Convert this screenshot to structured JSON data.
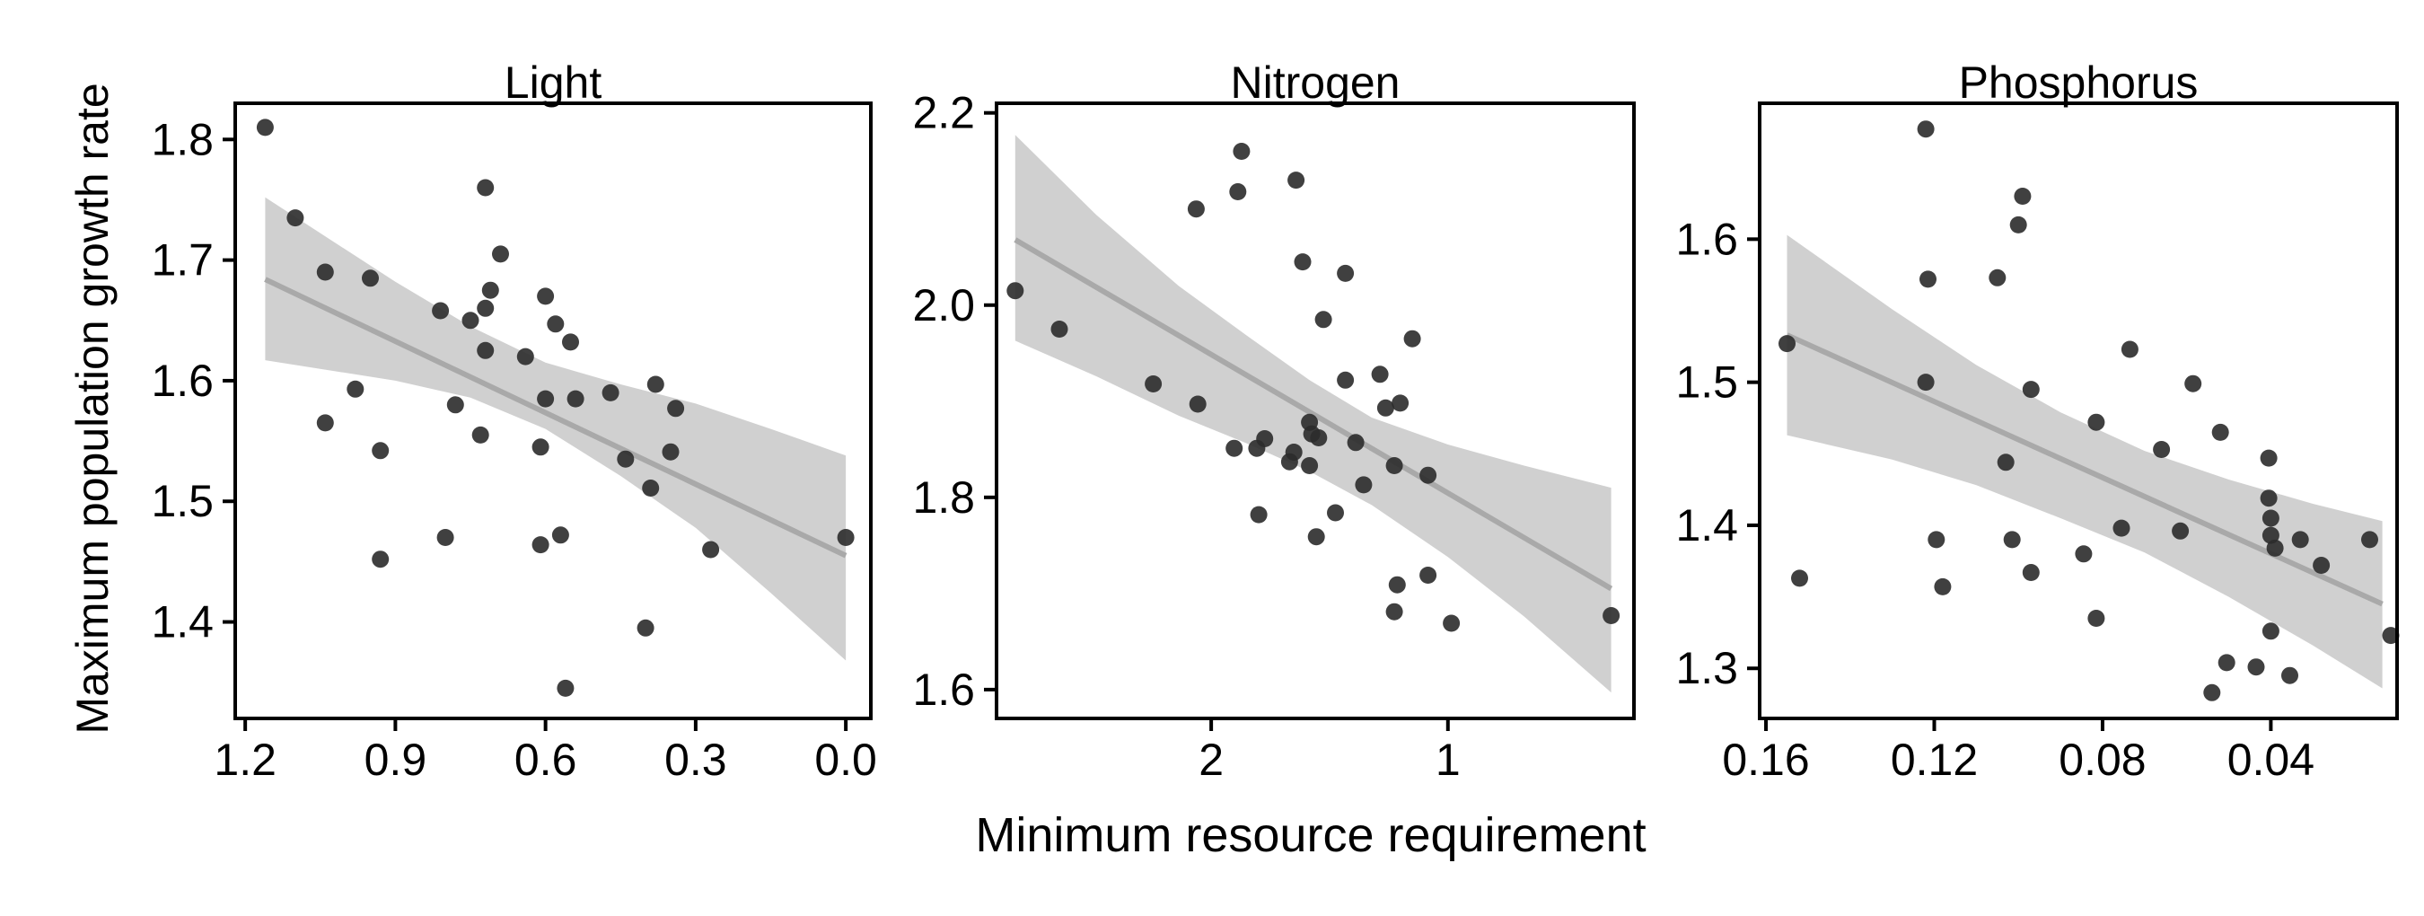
{
  "figure": {
    "ylabel": "Maximum population growth rate",
    "xlabel": "Minimum resource requirement"
  },
  "colors": {
    "point": "#2b2b2b",
    "band": "#d0d0d0",
    "trend": "#a9a9a9",
    "axis": "#000000"
  },
  "chart_data": [
    {
      "type": "scatter",
      "title": "Light",
      "x_reversed": true,
      "xlim": [
        1.22,
        -0.05
      ],
      "ylim": [
        1.32,
        1.83
      ],
      "x_ticks": [
        1.2,
        0.9,
        0.6,
        0.3,
        0.0
      ],
      "x_tick_labels": [
        "1.2",
        "0.9",
        "0.6",
        "0.3",
        "0.0"
      ],
      "y_ticks": [
        1.4,
        1.5,
        1.6,
        1.7,
        1.8
      ],
      "y_tick_labels": [
        "1.4",
        "1.5",
        "1.6",
        "1.7",
        "1.8"
      ],
      "points": [
        [
          1.16,
          1.81
        ],
        [
          1.1,
          1.735
        ],
        [
          1.04,
          1.69
        ],
        [
          0.95,
          1.685
        ],
        [
          1.04,
          1.565
        ],
        [
          0.98,
          1.593
        ],
        [
          0.93,
          1.542
        ],
        [
          0.93,
          1.452
        ],
        [
          0.81,
          1.658
        ],
        [
          0.75,
          1.65
        ],
        [
          0.72,
          1.76
        ],
        [
          0.72,
          1.66
        ],
        [
          0.71,
          1.675
        ],
        [
          0.69,
          1.705
        ],
        [
          0.72,
          1.625
        ],
        [
          0.78,
          1.58
        ],
        [
          0.73,
          1.555
        ],
        [
          0.8,
          1.47
        ],
        [
          0.64,
          1.62
        ],
        [
          0.6,
          1.67
        ],
        [
          0.58,
          1.647
        ],
        [
          0.55,
          1.632
        ],
        [
          0.6,
          1.585
        ],
        [
          0.54,
          1.585
        ],
        [
          0.61,
          1.545
        ],
        [
          0.61,
          1.464
        ],
        [
          0.57,
          1.472
        ],
        [
          0.56,
          1.345
        ],
        [
          0.47,
          1.59
        ],
        [
          0.38,
          1.597
        ],
        [
          0.44,
          1.535
        ],
        [
          0.34,
          1.577
        ],
        [
          0.35,
          1.541
        ],
        [
          0.39,
          1.511
        ],
        [
          0.4,
          1.395
        ],
        [
          0.27,
          1.46
        ],
        [
          0.0,
          1.47
        ]
      ],
      "trend": {
        "x": [
          1.16,
          0.0
        ],
        "y": [
          1.684,
          1.455
        ]
      },
      "band": {
        "x": [
          1.16,
          0.9,
          0.75,
          0.6,
          0.45,
          0.3,
          0.15,
          0.0
        ],
        "lower": [
          1.617,
          1.6,
          1.586,
          1.56,
          1.521,
          1.478,
          1.424,
          1.368
        ],
        "upper": [
          1.752,
          1.682,
          1.645,
          1.615,
          1.597,
          1.581,
          1.56,
          1.538
        ]
      }
    },
    {
      "type": "scatter",
      "title": "Nitrogen",
      "x_scale": "log",
      "x_reversed": true,
      "xlim": [
        3.75,
        0.58
      ],
      "ylim": [
        1.57,
        2.21
      ],
      "x_ticks": [
        2,
        1
      ],
      "x_tick_labels": [
        "2",
        "1"
      ],
      "y_ticks": [
        1.6,
        1.8,
        2.0,
        2.2
      ],
      "y_tick_labels": [
        "1.6",
        "1.8",
        "2.0",
        "2.2"
      ],
      "points": [
        [
          3.55,
          2.015
        ],
        [
          3.12,
          1.975
        ],
        [
          2.09,
          2.1
        ],
        [
          1.83,
          2.16
        ],
        [
          1.85,
          2.118
        ],
        [
          1.56,
          2.13
        ],
        [
          1.53,
          2.045
        ],
        [
          1.35,
          2.033
        ],
        [
          1.44,
          1.985
        ],
        [
          1.11,
          1.965
        ],
        [
          2.37,
          1.918
        ],
        [
          2.08,
          1.897
        ],
        [
          1.35,
          1.922
        ],
        [
          1.22,
          1.928
        ],
        [
          1.2,
          1.893
        ],
        [
          1.15,
          1.898
        ],
        [
          1.87,
          1.851
        ],
        [
          1.75,
          1.851
        ],
        [
          1.71,
          1.861
        ],
        [
          1.59,
          1.837
        ],
        [
          1.57,
          1.847
        ],
        [
          1.5,
          1.878
        ],
        [
          1.49,
          1.866
        ],
        [
          1.46,
          1.862
        ],
        [
          1.5,
          1.833
        ],
        [
          1.31,
          1.857
        ],
        [
          1.17,
          1.833
        ],
        [
          1.06,
          1.823
        ],
        [
          1.28,
          1.813
        ],
        [
          1.74,
          1.782
        ],
        [
          1.39,
          1.784
        ],
        [
          1.47,
          1.759
        ],
        [
          1.16,
          1.709
        ],
        [
          1.06,
          1.719
        ],
        [
          1.17,
          1.681
        ],
        [
          0.99,
          1.669
        ],
        [
          0.62,
          1.677
        ]
      ],
      "trend": {
        "x": [
          3.55,
          0.62
        ],
        "y": [
          2.068,
          1.705
        ]
      },
      "band": {
        "x": [
          3.55,
          2.8,
          2.2,
          1.8,
          1.5,
          1.25,
          1.0,
          0.8,
          0.62
        ],
        "lower": [
          1.963,
          1.926,
          1.885,
          1.856,
          1.827,
          1.792,
          1.738,
          1.676,
          1.597
        ],
        "upper": [
          2.177,
          2.094,
          2.02,
          1.968,
          1.922,
          1.883,
          1.855,
          1.833,
          1.81
        ]
      }
    },
    {
      "type": "scatter",
      "title": "Phosphorus",
      "x_reversed": true,
      "xlim": [
        0.1615,
        0.01
      ],
      "ylim": [
        1.265,
        1.695
      ],
      "x_ticks": [
        0.16,
        0.12,
        0.08,
        0.04
      ],
      "x_tick_labels": [
        "0.16",
        "0.12",
        "0.08",
        "0.04"
      ],
      "y_ticks": [
        1.3,
        1.4,
        1.5,
        1.6
      ],
      "y_tick_labels": [
        "1.3",
        "1.4",
        "1.5",
        "1.6"
      ],
      "points": [
        [
          0.155,
          1.527
        ],
        [
          0.152,
          1.363
        ],
        [
          0.122,
          1.677
        ],
        [
          0.1215,
          1.572
        ],
        [
          0.122,
          1.5
        ],
        [
          0.1195,
          1.39
        ],
        [
          0.118,
          1.357
        ],
        [
          0.105,
          1.573
        ],
        [
          0.1,
          1.61
        ],
        [
          0.099,
          1.63
        ],
        [
          0.097,
          1.495
        ],
        [
          0.103,
          1.444
        ],
        [
          0.1015,
          1.39
        ],
        [
          0.097,
          1.367
        ],
        [
          0.0815,
          1.472
        ],
        [
          0.0845,
          1.38
        ],
        [
          0.0815,
          1.335
        ],
        [
          0.0735,
          1.523
        ],
        [
          0.0755,
          1.398
        ],
        [
          0.066,
          1.453
        ],
        [
          0.0585,
          1.499
        ],
        [
          0.0615,
          1.396
        ],
        [
          0.052,
          1.465
        ],
        [
          0.0405,
          1.447
        ],
        [
          0.0405,
          1.419
        ],
        [
          0.04,
          1.405
        ],
        [
          0.04,
          1.393
        ],
        [
          0.039,
          1.384
        ],
        [
          0.033,
          1.39
        ],
        [
          0.028,
          1.372
        ],
        [
          0.04,
          1.326
        ],
        [
          0.0505,
          1.304
        ],
        [
          0.0435,
          1.301
        ],
        [
          0.0355,
          1.295
        ],
        [
          0.054,
          1.283
        ],
        [
          0.0165,
          1.39
        ],
        [
          0.0115,
          1.323
        ]
      ],
      "trend": {
        "x": [
          0.155,
          0.0135
        ],
        "y": [
          1.533,
          1.345
        ]
      },
      "band": {
        "x": [
          0.155,
          0.13,
          0.11,
          0.09,
          0.07,
          0.05,
          0.03,
          0.0135
        ],
        "lower": [
          1.463,
          1.446,
          1.428,
          1.405,
          1.381,
          1.35,
          1.316,
          1.286
        ],
        "upper": [
          1.603,
          1.551,
          1.512,
          1.479,
          1.452,
          1.432,
          1.415,
          1.403
        ]
      }
    }
  ]
}
